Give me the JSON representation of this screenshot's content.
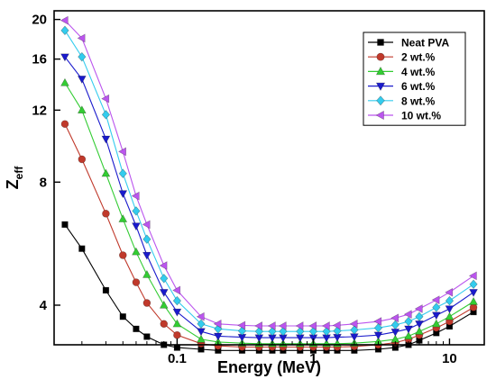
{
  "chart_data": {
    "type": "line",
    "xlabel": "Energy (MeV)",
    "ylabel_main": "Z",
    "ylabel_sub": "eff",
    "x_scale": "log",
    "y_scale": "log",
    "xlim": [
      0.0125,
      18
    ],
    "ylim": [
      3.2,
      21
    ],
    "x_ticks": [
      0.1,
      1,
      10
    ],
    "x_tick_labels": [
      "0.1",
      "1",
      "10"
    ],
    "y_ticks": [
      4,
      8,
      12,
      16,
      20
    ],
    "y_tick_labels": [
      "4",
      "8",
      "12",
      "16",
      "20"
    ],
    "grid": false,
    "legend_position": "top-right",
    "x": [
      0.015,
      0.02,
      0.03,
      0.04,
      0.05,
      0.06,
      0.08,
      0.1,
      0.15,
      0.2,
      0.3,
      0.4,
      0.5,
      0.6,
      0.8,
      1,
      1.25,
      1.5,
      2,
      3,
      4,
      5,
      6,
      8,
      10,
      15
    ],
    "series": [
      {
        "name": "Neat PVA",
        "color": "#000000",
        "marker": "square",
        "values": [
          6.3,
          5.5,
          4.35,
          3.75,
          3.5,
          3.35,
          3.2,
          3.15,
          3.12,
          3.1,
          3.1,
          3.1,
          3.1,
          3.1,
          3.1,
          3.1,
          3.1,
          3.1,
          3.1,
          3.12,
          3.15,
          3.2,
          3.28,
          3.42,
          3.55,
          3.85
        ]
      },
      {
        "name": "2 wt.%",
        "color": "#c0392b",
        "marker": "circle",
        "values": [
          11.1,
          9.1,
          6.7,
          5.3,
          4.55,
          4.05,
          3.6,
          3.38,
          3.22,
          3.18,
          3.16,
          3.16,
          3.16,
          3.16,
          3.16,
          3.16,
          3.16,
          3.16,
          3.17,
          3.2,
          3.24,
          3.3,
          3.38,
          3.52,
          3.65,
          3.95
        ]
      },
      {
        "name": "4 wt.%",
        "color": "#33cc33",
        "marker": "triangle-up",
        "values": [
          14.0,
          12.0,
          8.4,
          6.5,
          5.4,
          4.75,
          4.0,
          3.6,
          3.3,
          3.25,
          3.23,
          3.22,
          3.22,
          3.22,
          3.22,
          3.22,
          3.22,
          3.22,
          3.23,
          3.26,
          3.3,
          3.36,
          3.45,
          3.6,
          3.75,
          4.08
        ]
      },
      {
        "name": "6 wt.%",
        "color": "#1a1acc",
        "marker": "triangle-down",
        "values": [
          16.2,
          14.3,
          10.2,
          7.5,
          6.25,
          5.3,
          4.3,
          3.85,
          3.45,
          3.36,
          3.34,
          3.33,
          3.33,
          3.33,
          3.33,
          3.33,
          3.33,
          3.34,
          3.35,
          3.38,
          3.44,
          3.5,
          3.6,
          3.78,
          3.92,
          4.3
        ]
      },
      {
        "name": "8 wt.%",
        "color": "#33ccee",
        "marker": "diamond",
        "values": [
          18.8,
          16.2,
          11.7,
          8.4,
          6.8,
          5.8,
          4.65,
          4.1,
          3.6,
          3.5,
          3.46,
          3.45,
          3.45,
          3.45,
          3.45,
          3.45,
          3.45,
          3.46,
          3.48,
          3.52,
          3.58,
          3.65,
          3.75,
          3.95,
          4.1,
          4.5
        ]
      },
      {
        "name": "10 wt.%",
        "color": "#bb55ee",
        "marker": "triangle-left",
        "values": [
          19.9,
          18.0,
          12.8,
          9.5,
          7.4,
          6.3,
          5.0,
          4.35,
          3.75,
          3.6,
          3.57,
          3.56,
          3.56,
          3.56,
          3.56,
          3.56,
          3.56,
          3.57,
          3.6,
          3.65,
          3.72,
          3.8,
          3.92,
          4.12,
          4.3,
          4.72
        ]
      }
    ]
  }
}
